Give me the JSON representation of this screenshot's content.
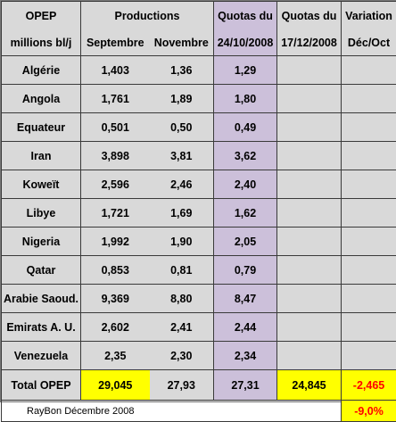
{
  "header": {
    "col1_line1": "OPEP",
    "col1_line2": "millions bl/j",
    "productions": "Productions",
    "septembre": "Septembre",
    "novembre": "Novembre",
    "quotas1_line1": "Quotas du",
    "quotas1_line2": "24/10/2008",
    "quotas2_line1": "Quotas du",
    "quotas2_line2": "17/12/2008",
    "variation_line1": "Variation",
    "variation_line2": "Déc/Oct"
  },
  "rows": [
    {
      "country": "Algérie",
      "sep": "1,403",
      "nov": "1,36",
      "quota": "1,29"
    },
    {
      "country": "Angola",
      "sep": "1,761",
      "nov": "1,89",
      "quota": "1,80"
    },
    {
      "country": "Equateur",
      "sep": "0,501",
      "nov": "0,50",
      "quota": "0,49"
    },
    {
      "country": "Iran",
      "sep": "3,898",
      "nov": "3,81",
      "quota": "3,62"
    },
    {
      "country": "Koweït",
      "sep": "2,596",
      "nov": "2,46",
      "quota": "2,40"
    },
    {
      "country": "Libye",
      "sep": "1,721",
      "nov": "1,69",
      "quota": "1,62"
    },
    {
      "country": "Nigeria",
      "sep": "1,992",
      "nov": "1,90",
      "quota": "2,05"
    },
    {
      "country": "Qatar",
      "sep": "0,853",
      "nov": "0,81",
      "quota": "0,79"
    },
    {
      "country": "Arabie Saoud.",
      "sep": "9,369",
      "nov": "8,80",
      "quota": "8,47"
    },
    {
      "country": "Emirats A. U.",
      "sep": "2,602",
      "nov": "2,41",
      "quota": "2,44"
    },
    {
      "country": "Venezuela",
      "sep": "2,35",
      "nov": "2,30",
      "quota": "2,34"
    }
  ],
  "total": {
    "label": "Total OPEP",
    "sep": "29,045",
    "nov": "27,93",
    "quota1": "27,31",
    "quota2": "24,845",
    "variation": "-2,465"
  },
  "footer": {
    "note": "RayBon Décembre 2008",
    "variation_pct": "-9,0%"
  },
  "colors": {
    "lavender": "#ccc0da",
    "yellow": "#ffff00",
    "negative": "#ff0000",
    "background": "#d9d9d9"
  }
}
